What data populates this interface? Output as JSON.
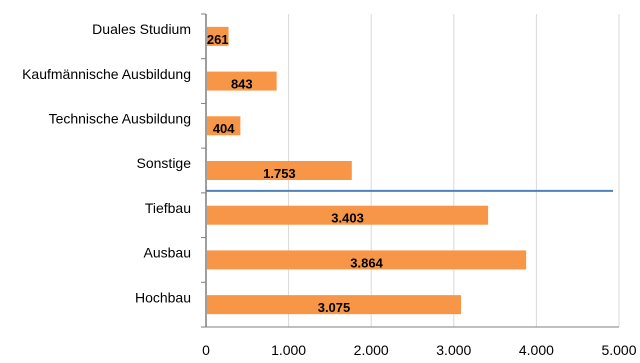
{
  "chart_data": {
    "type": "bar",
    "orientation": "horizontal",
    "categories": [
      "Duales Studium",
      "Kaufmännische Ausbildung",
      "Technische Ausbildung",
      "Sonstige",
      "Tiefbau",
      "Ausbau",
      "Hochbau"
    ],
    "values": [
      261,
      843,
      404,
      1753,
      3403,
      3864,
      3075
    ],
    "value_labels": [
      "261",
      "843",
      "404",
      "1.753",
      "3.403",
      "3.864",
      "3.075"
    ],
    "xticks": [
      "0",
      "1.000",
      "2.000",
      "3.000",
      "4.000",
      "5.000"
    ],
    "xlim": [
      0,
      5000
    ],
    "grid": true,
    "legend": "none",
    "separator_after_category": "Sonstige",
    "colors": {
      "bar": "#F79646",
      "separator": "#4F81BD",
      "grid": "#D9D9D9",
      "axis": "#7F7F7F"
    }
  }
}
